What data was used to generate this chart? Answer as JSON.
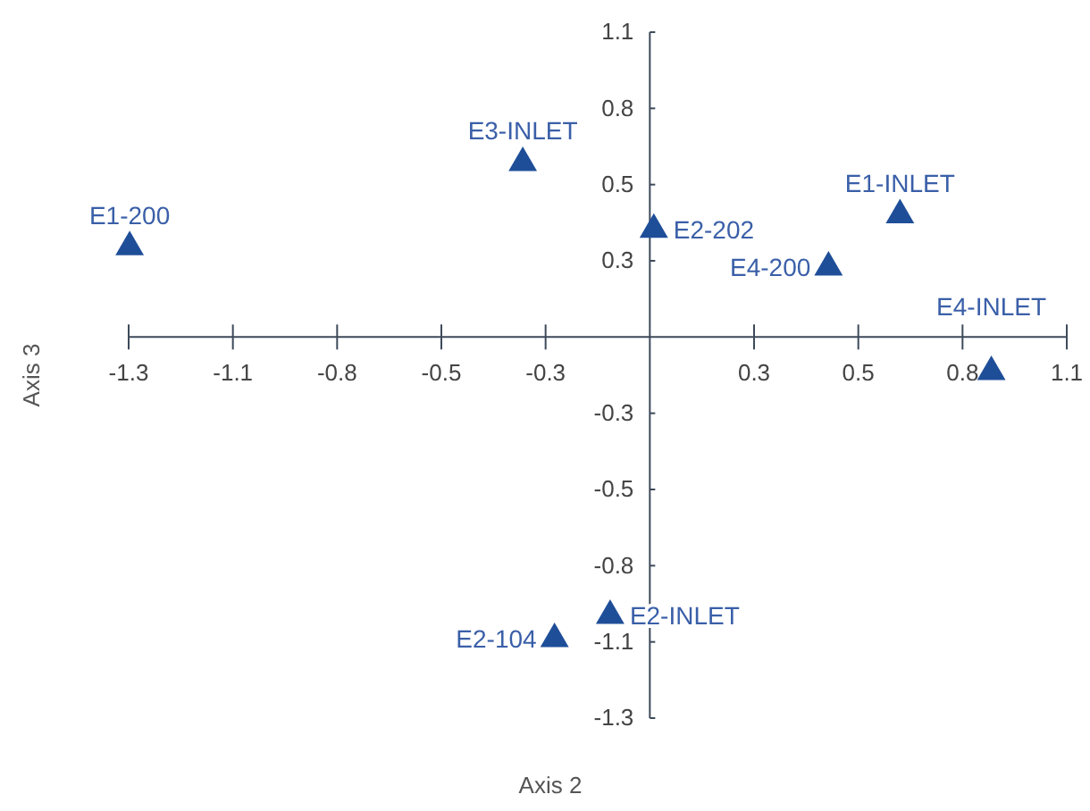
{
  "chart_data": {
    "type": "scatter",
    "xlabel": "Axis 2",
    "ylabel": "Axis 3",
    "marker": "triangle",
    "data_labels": false,
    "grid": false,
    "xlim": [
      -1.3125,
      1.05
    ],
    "ylim": [
      -1.3125,
      1.05
    ],
    "xticks": [
      {
        "value": -1.3125,
        "label": "-1.3"
      },
      {
        "value": -1.05,
        "label": "-1.1"
      },
      {
        "value": -0.7875,
        "label": "-0.8"
      },
      {
        "value": -0.525,
        "label": "-0.5"
      },
      {
        "value": -0.2625,
        "label": "-0.3"
      },
      {
        "value": 0.2625,
        "label": "0.3"
      },
      {
        "value": 0.525,
        "label": "0.5"
      },
      {
        "value": 0.7875,
        "label": "0.8"
      },
      {
        "value": 1.05,
        "label": "1.1"
      }
    ],
    "yticks": [
      {
        "value": -1.3125,
        "label": "-1.3"
      },
      {
        "value": -1.05,
        "label": "-1.1"
      },
      {
        "value": -0.7875,
        "label": "-0.8"
      },
      {
        "value": -0.525,
        "label": "-0.5"
      },
      {
        "value": -0.2625,
        "label": "-0.3"
      },
      {
        "value": 0.2625,
        "label": "0.3"
      },
      {
        "value": 0.525,
        "label": "0.5"
      },
      {
        "value": 0.7875,
        "label": "0.8"
      },
      {
        "value": 1.05,
        "label": "1.1"
      }
    ],
    "series": [
      {
        "name": "E1-200",
        "color": "#1f4e99",
        "x": [
          -1.31
        ],
        "values": [
          0.31
        ]
      },
      {
        "name": "E3-INLET",
        "color": "#1f4e99",
        "x": [
          -0.32
        ],
        "values": [
          0.6
        ]
      },
      {
        "name": "E2-202",
        "color": "#1f4e99",
        "x": [
          0.01
        ],
        "values": [
          0.37
        ]
      },
      {
        "name": "E1-INLET",
        "color": "#1f4e99",
        "x": [
          0.63
        ],
        "values": [
          0.42
        ]
      },
      {
        "name": "E4-200",
        "color": "#1f4e99",
        "x": [
          0.45
        ],
        "values": [
          0.24
        ]
      },
      {
        "name": "E4-INLET",
        "color": "#1f4e99",
        "x": [
          0.86
        ],
        "values": [
          -0.12
        ]
      },
      {
        "name": "E2-INLET",
        "color": "#1f4e99",
        "x": [
          -0.1
        ],
        "values": [
          -0.96
        ]
      },
      {
        "name": "E2-104",
        "color": "#1f4e99",
        "x": [
          -0.24
        ],
        "values": [
          -1.04
        ]
      }
    ]
  }
}
